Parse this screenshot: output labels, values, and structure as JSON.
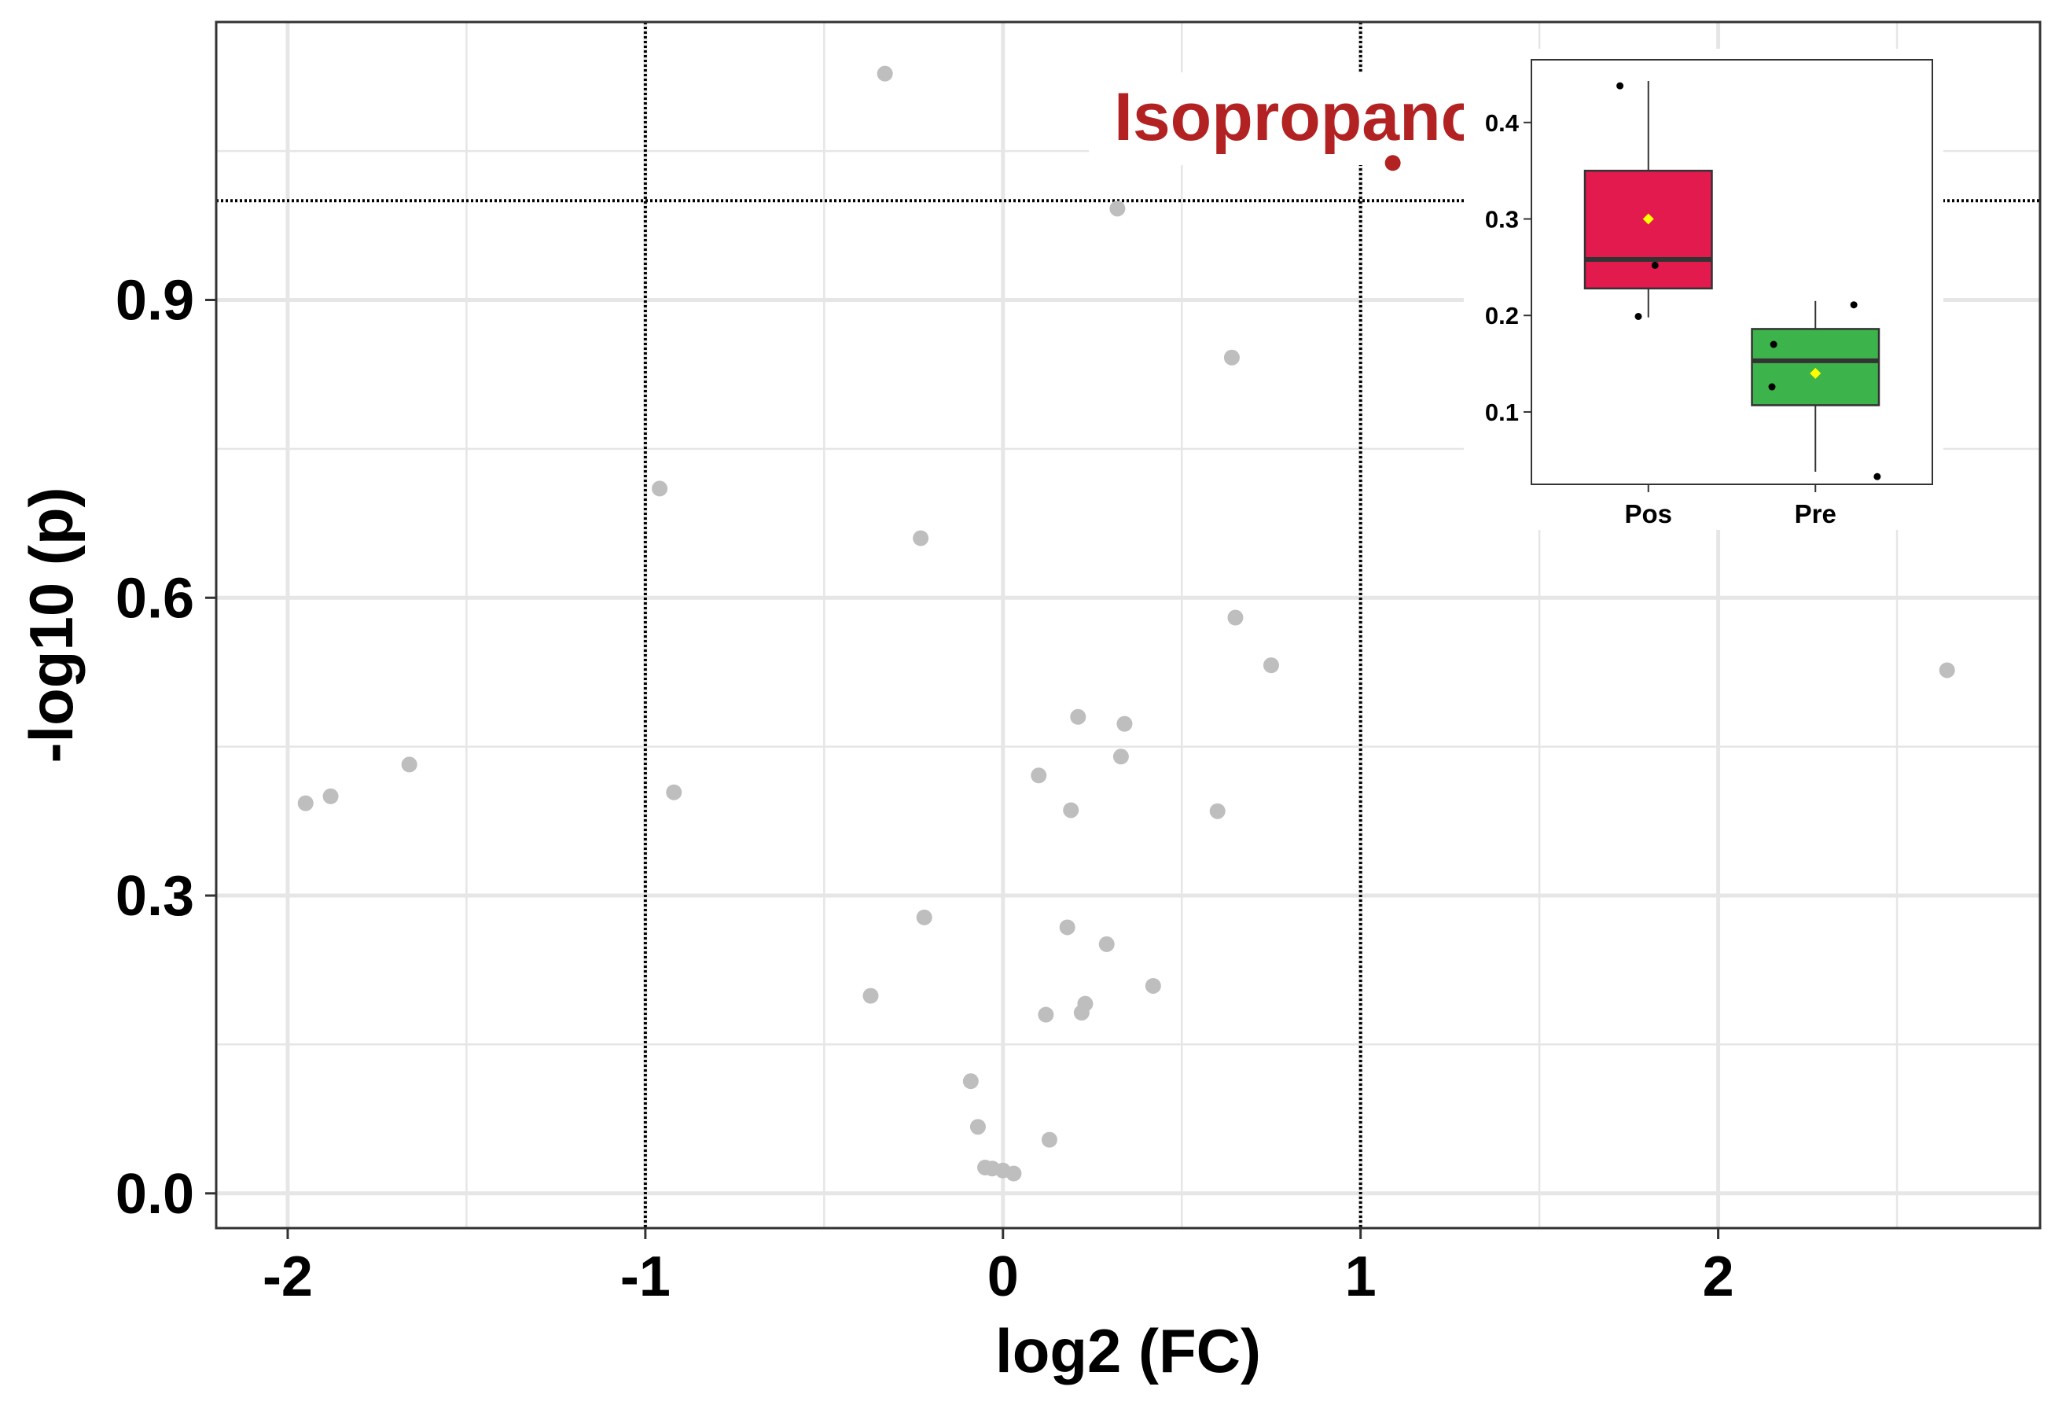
{
  "chart_data": [
    {
      "type": "scatter",
      "subtype": "volcano",
      "title": "",
      "xlabel": "log2 (FC)",
      "ylabel": "-log10 (p)",
      "xlim": [
        -2.2,
        2.9
      ],
      "ylim": [
        -0.035,
        1.18
      ],
      "xticks": [
        -2,
        -1,
        0,
        1,
        2
      ],
      "xtick_labels": [
        "-2",
        "-1",
        "0",
        "1",
        "2"
      ],
      "yticks": [
        0.0,
        0.3,
        0.6,
        0.9
      ],
      "ytick_labels": [
        "0.0",
        "0.3",
        "0.6",
        "0.9"
      ],
      "thresholds": {
        "log2fc": [
          -1,
          1
        ],
        "neg_log10_p": 1.0
      },
      "grid": true,
      "colors": {
        "point": "#bebebe",
        "highlight": "#b22222",
        "threshold_line": "#000000",
        "grid": "#e6e6e6"
      },
      "points": [
        {
          "x": -1.95,
          "y": 0.393
        },
        {
          "x": -1.88,
          "y": 0.4
        },
        {
          "x": -1.66,
          "y": 0.432
        },
        {
          "x": -0.96,
          "y": 0.71
        },
        {
          "x": -0.92,
          "y": 0.404
        },
        {
          "x": -0.37,
          "y": 0.199
        },
        {
          "x": -0.33,
          "y": 1.128
        },
        {
          "x": -0.23,
          "y": 0.66
        },
        {
          "x": -0.22,
          "y": 0.278
        },
        {
          "x": -0.09,
          "y": 0.113
        },
        {
          "x": -0.07,
          "y": 0.067
        },
        {
          "x": -0.05,
          "y": 0.026
        },
        {
          "x": -0.03,
          "y": 0.025
        },
        {
          "x": 0.0,
          "y": 0.023
        },
        {
          "x": 0.03,
          "y": 0.02
        },
        {
          "x": 0.1,
          "y": 0.421
        },
        {
          "x": 0.12,
          "y": 0.18
        },
        {
          "x": 0.13,
          "y": 0.054
        },
        {
          "x": 0.18,
          "y": 0.268
        },
        {
          "x": 0.19,
          "y": 0.386
        },
        {
          "x": 0.21,
          "y": 0.48
        },
        {
          "x": 0.22,
          "y": 0.182
        },
        {
          "x": 0.23,
          "y": 0.191
        },
        {
          "x": 0.29,
          "y": 0.251
        },
        {
          "x": 0.32,
          "y": 0.992
        },
        {
          "x": 0.33,
          "y": 0.44
        },
        {
          "x": 0.34,
          "y": 0.473
        },
        {
          "x": 0.42,
          "y": 0.209
        },
        {
          "x": 0.6,
          "y": 0.385
        },
        {
          "x": 0.64,
          "y": 0.842
        },
        {
          "x": 0.65,
          "y": 0.58
        },
        {
          "x": 0.75,
          "y": 0.532
        },
        {
          "x": 2.64,
          "y": 0.527
        }
      ],
      "highlight": {
        "label": "Isopropanol",
        "x": 1.09,
        "y": 1.038
      }
    },
    {
      "type": "box",
      "title": "",
      "categories": [
        "Pos",
        "Pre"
      ],
      "ylim": [
        0.025,
        0.465
      ],
      "yticks": [
        0.1,
        0.2,
        0.3,
        0.4
      ],
      "ytick_labels": [
        "0.1",
        "0.2",
        "0.3",
        "0.4"
      ],
      "groups": [
        {
          "name": "Pos",
          "color": "#e31a4e",
          "min": 0.198,
          "q1": 0.228,
          "median": 0.258,
          "q3": 0.35,
          "max": 0.443,
          "mean": 0.3,
          "points": [
            {
              "dx": -0.17,
              "y": 0.438
            },
            {
              "dx": 0.04,
              "y": 0.252
            },
            {
              "dx": -0.06,
              "y": 0.199
            }
          ]
        },
        {
          "name": "Pre",
          "color": "#3cb44b",
          "min": 0.038,
          "q1": 0.107,
          "median": 0.153,
          "q3": 0.186,
          "max": 0.215,
          "mean": 0.14,
          "points": [
            {
              "dx": -0.25,
              "y": 0.17
            },
            {
              "dx": -0.26,
              "y": 0.126
            },
            {
              "dx": 0.23,
              "y": 0.211
            },
            {
              "dx": 0.37,
              "y": 0.033
            }
          ]
        }
      ],
      "mean_marker_color": "#ffff00"
    }
  ]
}
